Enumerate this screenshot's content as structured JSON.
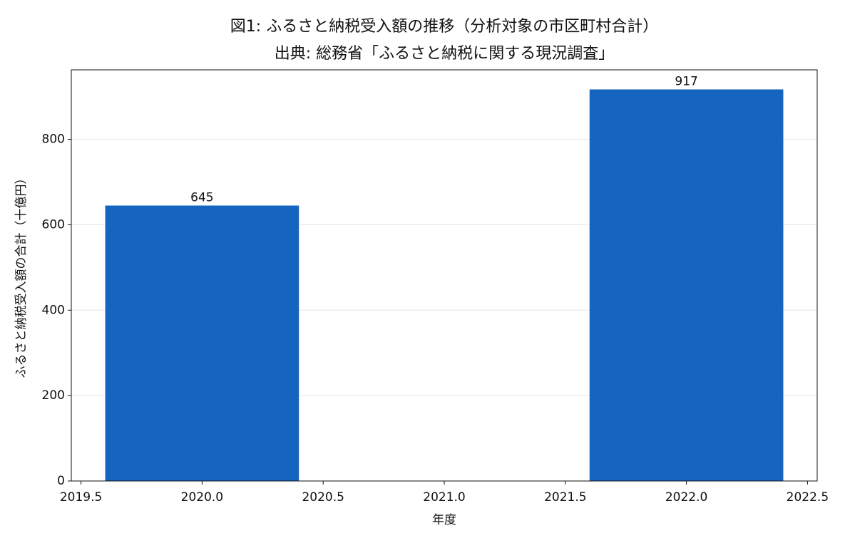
{
  "chart_data": {
    "type": "bar",
    "title": "図1: ふるさと納税受入額の推移（分析対象の市区町村合計）",
    "subtitle": "出典: 総務省「ふるさと納税に関する現況調査」",
    "x_label": "年度",
    "y_label": "ふるさと納税受入額の合計（十億円）",
    "x": [
      2020,
      2022
    ],
    "values": [
      645,
      917
    ],
    "color": "#1565c0",
    "xlim": [
      2019.46,
      2022.54
    ],
    "xticks": [
      2019.5,
      {
        "value": 2020,
        "label": "2020.0"
      },
      2020.5,
      {
        "value": 2021,
        "label": "2021.0"
      },
      2021.5,
      {
        "value": 2022,
        "label": "2022.0"
      },
      2022.5
    ],
    "ylim": [
      0,
      962.85
    ],
    "yticks": [
      0,
      200,
      400,
      600,
      800
    ],
    "grid": true
  }
}
